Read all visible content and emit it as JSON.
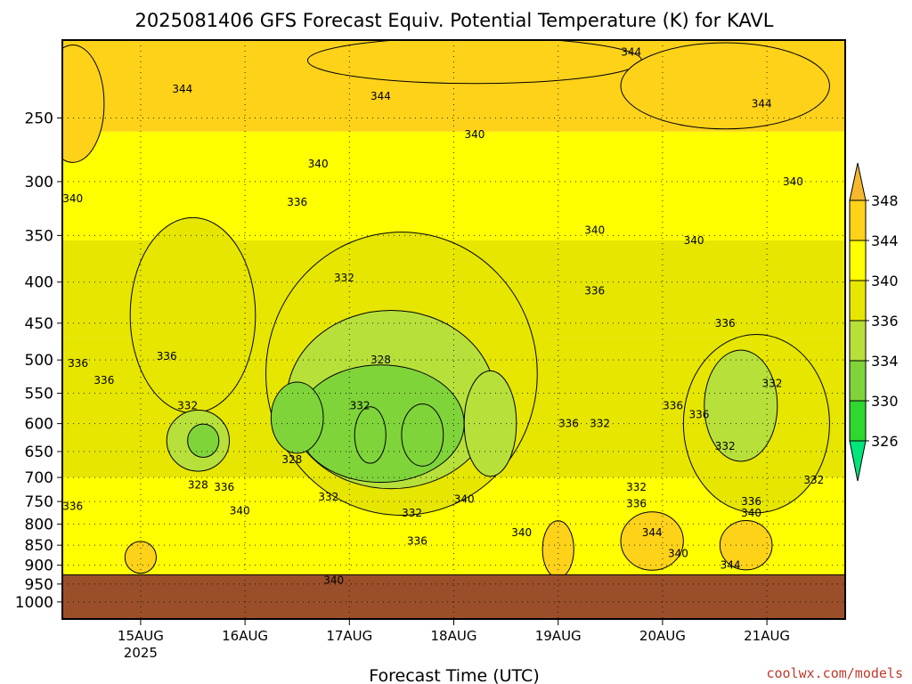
{
  "chart_data": {
    "type": "heatmap",
    "title": "2025081406 GFS Forecast Equiv. Potential Temperature (K) for KAVL",
    "xlabel": "Forecast Time (UTC)",
    "ylabel": "",
    "credit": "coolwx.com/models",
    "x_ticks": [
      {
        "day": 15,
        "label": "15AUG",
        "sublabel": "2025"
      },
      {
        "day": 16,
        "label": "16AUG",
        "sublabel": ""
      },
      {
        "day": 17,
        "label": "17AUG",
        "sublabel": ""
      },
      {
        "day": 18,
        "label": "18AUG",
        "sublabel": ""
      },
      {
        "day": 19,
        "label": "19AUG",
        "sublabel": ""
      },
      {
        "day": 20,
        "label": "20AUG",
        "sublabel": ""
      },
      {
        "day": 21,
        "label": "21AUG",
        "sublabel": ""
      }
    ],
    "x_range_days": [
      14.25,
      21.75
    ],
    "y_ticks": [
      250,
      300,
      350,
      400,
      450,
      500,
      550,
      600,
      650,
      700,
      750,
      800,
      850,
      900,
      950,
      1000
    ],
    "y_range_hpa": [
      200,
      1050
    ],
    "y_scale": "log",
    "ground_level_hpa": 925,
    "grid": "dotted",
    "colorbar": {
      "levels": [
        326,
        330,
        334,
        336,
        340,
        344,
        348
      ],
      "colors": [
        "#00e67a",
        "#2ed82e",
        "#7fd43a",
        "#b8e03a",
        "#e6e600",
        "#ffff00",
        "#ffd21a",
        "#f5b82e"
      ],
      "extend": "both",
      "placement": "right"
    },
    "colors": {
      "ground": "#9a4f2a",
      "axis": "#000000",
      "credit": "#c0392b"
    },
    "bands": [
      {
        "value": 344,
        "p_top": 200,
        "p_bottom": 260
      },
      {
        "value": 340,
        "p_top": 260,
        "p_bottom": 355
      },
      {
        "value": 336,
        "p_top": 355,
        "p_bottom": 470
      },
      {
        "value": 336,
        "p_top": 470,
        "p_bottom": 700
      },
      {
        "value": 340,
        "p_top": 700,
        "p_bottom": 925
      }
    ],
    "regions": [
      {
        "value": 344,
        "day": 14.35,
        "p": 240,
        "rx": 0.3,
        "rp": 40
      },
      {
        "value": 344,
        "day": 18.2,
        "p": 212,
        "rx": 1.6,
        "rp": 14
      },
      {
        "value": 344,
        "day": 20.6,
        "p": 228,
        "rx": 1.0,
        "rp": 28
      },
      {
        "value": 336,
        "day": 15.5,
        "p": 440,
        "rx": 0.6,
        "rp": 120
      },
      {
        "value": 336,
        "day": 17.5,
        "p": 520,
        "rx": 1.3,
        "rp": 200
      },
      {
        "value": 334,
        "day": 17.4,
        "p": 560,
        "rx": 1.0,
        "rp": 140
      },
      {
        "value": 332,
        "day": 17.3,
        "p": 600,
        "rx": 0.8,
        "rp": 100
      },
      {
        "value": 330,
        "day": 16.5,
        "p": 590,
        "rx": 0.25,
        "rp": 60
      },
      {
        "value": 330,
        "day": 17.2,
        "p": 620,
        "rx": 0.15,
        "rp": 50
      },
      {
        "value": 330,
        "day": 17.7,
        "p": 620,
        "rx": 0.2,
        "rp": 55
      },
      {
        "value": 334,
        "day": 15.55,
        "p": 630,
        "rx": 0.3,
        "rp": 55
      },
      {
        "value": 330,
        "day": 15.6,
        "p": 630,
        "rx": 0.15,
        "rp": 30
      },
      {
        "value": 336,
        "day": 20.9,
        "p": 600,
        "rx": 0.7,
        "rp": 150
      },
      {
        "value": 334,
        "day": 20.75,
        "p": 570,
        "rx": 0.35,
        "rp": 90
      },
      {
        "value": 334,
        "day": 18.35,
        "p": 600,
        "rx": 0.25,
        "rp": 90
      },
      {
        "value": 344,
        "day": 19.9,
        "p": 840,
        "rx": 0.3,
        "rp": 70
      },
      {
        "value": 344,
        "day": 20.8,
        "p": 850,
        "rx": 0.25,
        "rp": 60
      },
      {
        "value": 344,
        "day": 19.0,
        "p": 860,
        "rx": 0.15,
        "rp": 70
      },
      {
        "value": 344,
        "day": 15.0,
        "p": 880,
        "rx": 0.15,
        "rp": 40
      }
    ],
    "contour_labels": [
      {
        "text": "344",
        "day": 15.4,
        "p": 230
      },
      {
        "text": "344",
        "day": 17.3,
        "p": 235
      },
      {
        "text": "344",
        "day": 19.7,
        "p": 207
      },
      {
        "text": "344",
        "day": 20.95,
        "p": 240
      },
      {
        "text": "340",
        "day": 18.2,
        "p": 262
      },
      {
        "text": "340",
        "day": 16.7,
        "p": 285
      },
      {
        "text": "340",
        "day": 14.35,
        "p": 315
      },
      {
        "text": "340",
        "day": 21.25,
        "p": 300
      },
      {
        "text": "340",
        "day": 19.35,
        "p": 345
      },
      {
        "text": "340",
        "day": 20.3,
        "p": 355
      },
      {
        "text": "336",
        "day": 16.5,
        "p": 318
      },
      {
        "text": "336",
        "day": 19.35,
        "p": 410
      },
      {
        "text": "336",
        "day": 20.6,
        "p": 450
      },
      {
        "text": "336",
        "day": 14.4,
        "p": 505
      },
      {
        "text": "336",
        "day": 14.65,
        "p": 530
      },
      {
        "text": "336",
        "day": 15.25,
        "p": 495
      },
      {
        "text": "336",
        "day": 19.1,
        "p": 600
      },
      {
        "text": "336",
        "day": 20.1,
        "p": 570
      },
      {
        "text": "336",
        "day": 20.35,
        "p": 585
      },
      {
        "text": "336",
        "day": 15.8,
        "p": 720
      },
      {
        "text": "336",
        "day": 14.35,
        "p": 760
      },
      {
        "text": "336",
        "day": 17.65,
        "p": 840
      },
      {
        "text": "336",
        "day": 19.75,
        "p": 755
      },
      {
        "text": "336",
        "day": 20.85,
        "p": 750
      },
      {
        "text": "332",
        "day": 16.95,
        "p": 395
      },
      {
        "text": "332",
        "day": 15.45,
        "p": 570
      },
      {
        "text": "332",
        "day": 17.1,
        "p": 570
      },
      {
        "text": "332",
        "day": 19.4,
        "p": 600
      },
      {
        "text": "332",
        "day": 21.05,
        "p": 535
      },
      {
        "text": "332",
        "day": 20.6,
        "p": 640
      },
      {
        "text": "332",
        "day": 16.8,
        "p": 740
      },
      {
        "text": "332",
        "day": 17.6,
        "p": 775
      },
      {
        "text": "332",
        "day": 19.75,
        "p": 720
      },
      {
        "text": "332",
        "day": 21.45,
        "p": 705
      },
      {
        "text": "328",
        "day": 17.3,
        "p": 500
      },
      {
        "text": "328",
        "day": 16.45,
        "p": 665
      },
      {
        "text": "328",
        "day": 15.55,
        "p": 715
      },
      {
        "text": "340",
        "day": 15.95,
        "p": 770
      },
      {
        "text": "340",
        "day": 18.1,
        "p": 745
      },
      {
        "text": "340",
        "day": 18.65,
        "p": 820
      },
      {
        "text": "340",
        "day": 16.85,
        "p": 940
      },
      {
        "text": "340",
        "day": 20.15,
        "p": 870
      },
      {
        "text": "340",
        "day": 20.85,
        "p": 775
      },
      {
        "text": "344",
        "day": 19.9,
        "p": 820
      },
      {
        "text": "344",
        "day": 20.65,
        "p": 900
      }
    ]
  }
}
